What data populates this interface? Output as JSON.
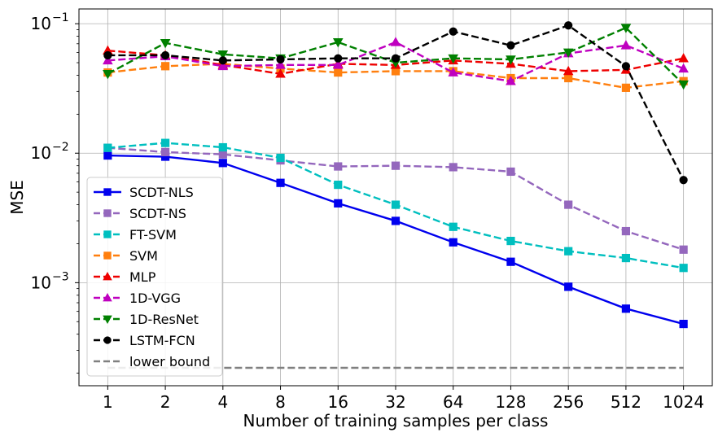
{
  "chart_data": {
    "type": "line",
    "xlabel": "Number of training samples per class",
    "ylabel": "MSE",
    "yscale": "log",
    "ylim": [
      0.00016,
      0.13
    ],
    "grid": true,
    "legend_position": "lower-left",
    "categories": [
      "1",
      "2",
      "4",
      "8",
      "16",
      "32",
      "64",
      "128",
      "256",
      "512",
      "1024"
    ],
    "y_ticks": [
      {
        "value": 0.001,
        "base": "10",
        "exp": "−3"
      },
      {
        "value": 0.01,
        "base": "10",
        "exp": "−2"
      },
      {
        "value": 0.1,
        "base": "10",
        "exp": "−1"
      }
    ],
    "series": [
      {
        "name": "SCDT-NLS",
        "color": "#0000ee",
        "dash": "solid",
        "marker": "square",
        "values": [
          0.0096,
          0.0094,
          0.0084,
          0.0059,
          0.0041,
          0.003,
          0.00205,
          0.00145,
          0.00093,
          0.00063,
          0.00048
        ]
      },
      {
        "name": "SCDT-NS",
        "color": "#9467bd",
        "dash": "dashed",
        "marker": "square",
        "values": [
          0.011,
          0.0102,
          0.0098,
          0.0088,
          0.0079,
          0.008,
          0.0078,
          0.0072,
          0.004,
          0.0025,
          0.0018
        ]
      },
      {
        "name": "FT-SVM",
        "color": "#00bfbf",
        "dash": "dashed",
        "marker": "square",
        "values": [
          0.011,
          0.012,
          0.0111,
          0.0092,
          0.0057,
          0.004,
          0.0027,
          0.0021,
          0.00175,
          0.00155,
          0.0013
        ]
      },
      {
        "name": "SVM",
        "color": "#ff7f0e",
        "dash": "dashed",
        "marker": "square",
        "values": [
          0.042,
          0.047,
          0.049,
          0.045,
          0.042,
          0.043,
          0.043,
          0.038,
          0.038,
          0.032,
          0.036
        ]
      },
      {
        "name": "MLP",
        "color": "#ee0000",
        "dash": "dashed",
        "marker": "triangle-up",
        "values": [
          0.062,
          0.057,
          0.048,
          0.041,
          0.049,
          0.048,
          0.052,
          0.049,
          0.043,
          0.044,
          0.054
        ]
      },
      {
        "name": "1D-VGG",
        "color": "#bf00bf",
        "dash": "dashed",
        "marker": "triangle-up",
        "values": [
          0.052,
          0.056,
          0.047,
          0.048,
          0.048,
          0.072,
          0.042,
          0.036,
          0.059,
          0.068,
          0.045
        ]
      },
      {
        "name": "1D-ResNet",
        "color": "#008000",
        "dash": "dashed",
        "marker": "triangle-down",
        "values": [
          0.041,
          0.071,
          0.058,
          0.054,
          0.072,
          0.05,
          0.054,
          0.053,
          0.06,
          0.093,
          0.034
        ]
      },
      {
        "name": "LSTM-FCN",
        "color": "#000000",
        "dash": "dashed",
        "marker": "circle",
        "values": [
          0.057,
          0.057,
          0.052,
          0.053,
          0.054,
          0.054,
          0.087,
          0.068,
          0.097,
          0.047,
          0.0062
        ]
      },
      {
        "name": "lower bound",
        "color": "#808080",
        "dash": "dashed",
        "marker": "none",
        "values": [
          0.00022,
          0.00022,
          0.00022,
          0.00022,
          0.00022,
          0.00022,
          0.00022,
          0.00022,
          0.00022,
          0.00022,
          0.00022
        ]
      }
    ]
  }
}
